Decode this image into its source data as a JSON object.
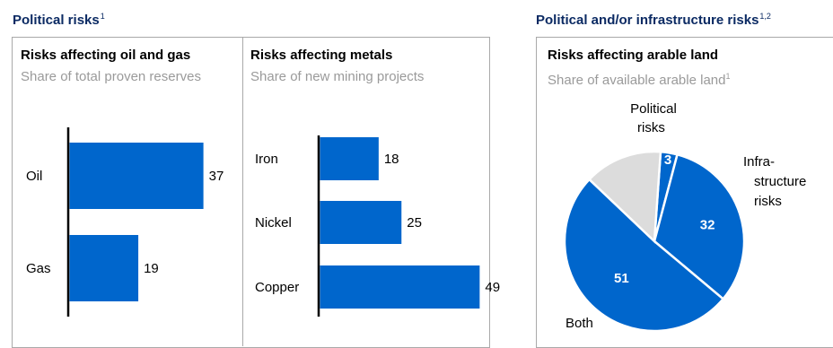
{
  "header_left": {
    "title": "Political risks",
    "footnote": "1"
  },
  "header_right": {
    "title": "Political and/or infrastructure risks",
    "footnote": "1,2"
  },
  "colors": {
    "bar": "#0066cc",
    "title": "#0b2a63",
    "subtitle": "#9a9a9a",
    "other": "#dcdcdc",
    "border": "#a9a9a9"
  },
  "oil_gas_panel": {
    "title": "Risks affecting oil and gas",
    "subtitle": "Share of total proven reserves"
  },
  "metals_panel": {
    "title": "Risks affecting metals",
    "subtitle": "Share of new mining projects"
  },
  "land_panel": {
    "title": "Risks affecting arable land",
    "subtitle": "Share of available arable land",
    "subtitle_footnote": "1"
  },
  "chart_data": [
    {
      "type": "bar",
      "orientation": "horizontal",
      "categories": [
        "Oil",
        "Gas"
      ],
      "values": [
        37,
        19
      ]
    },
    {
      "type": "bar",
      "orientation": "horizontal",
      "categories": [
        "Iron",
        "Nickel",
        "Copper"
      ],
      "values": [
        18,
        25,
        49
      ]
    },
    {
      "type": "pie",
      "slices": [
        {
          "label": "Political risks",
          "value": 3,
          "color": "#0066cc"
        },
        {
          "label": "Infra-structure risks",
          "value": 32,
          "color": "#0066cc"
        },
        {
          "label": "Both",
          "value": 51,
          "color": "#0066cc"
        },
        {
          "label": "",
          "value": 14,
          "color": "#dcdcdc"
        }
      ]
    }
  ]
}
